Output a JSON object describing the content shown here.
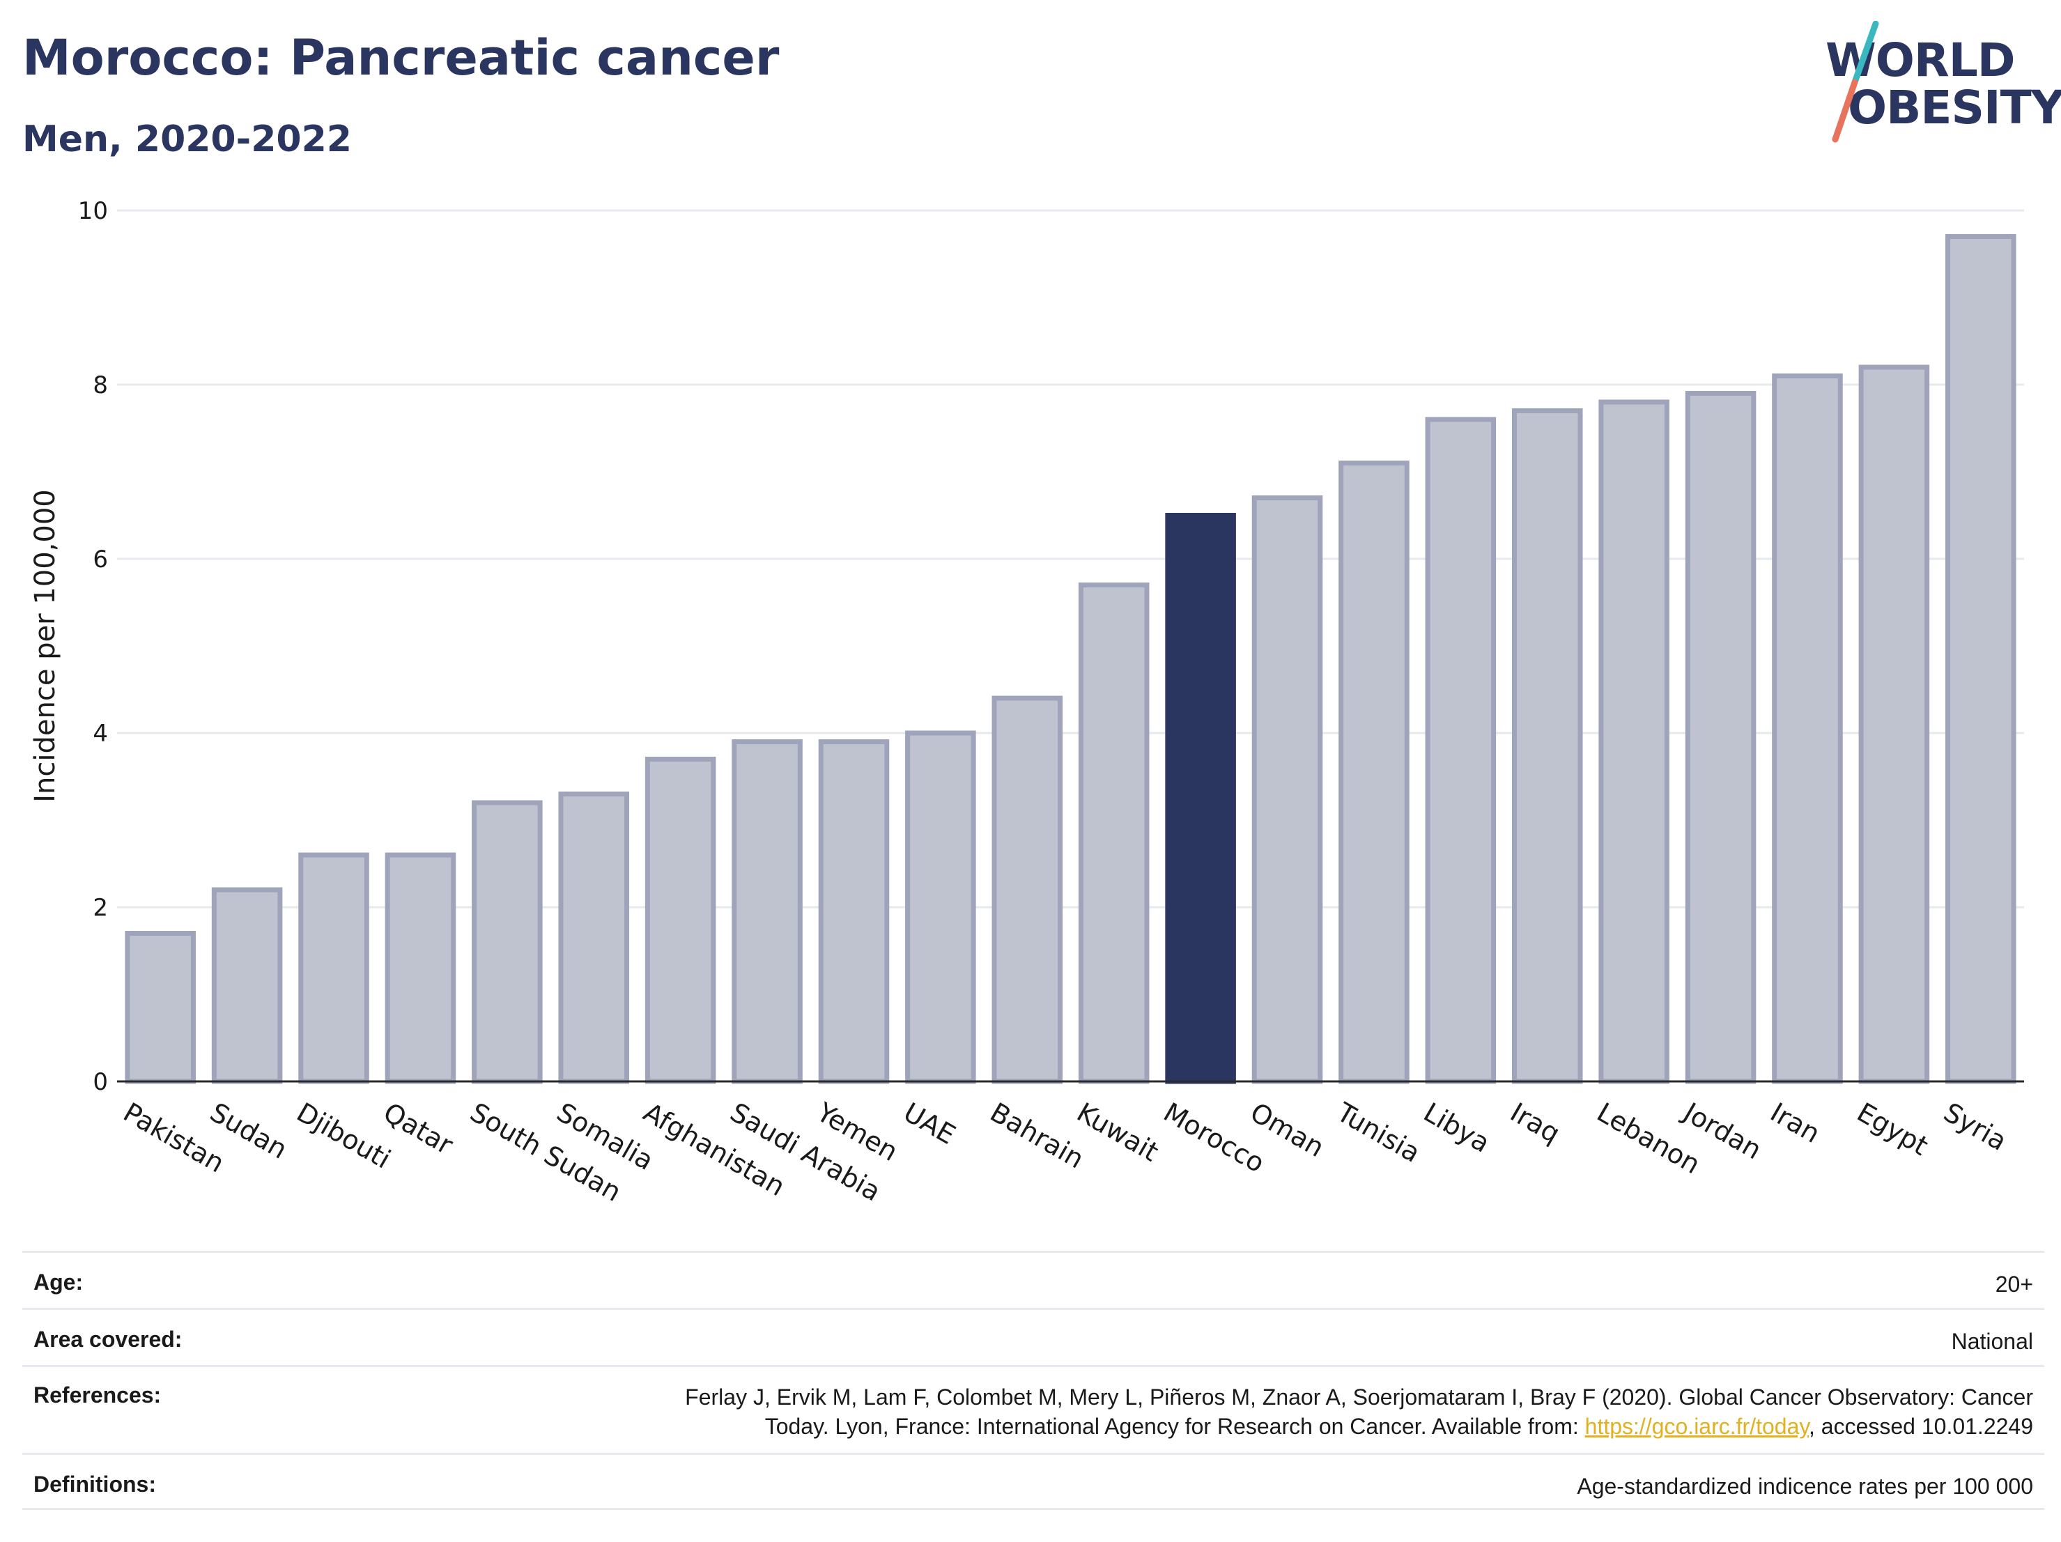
{
  "header": {
    "title": "Morocco: Pancreatic cancer",
    "subtitle": "Men, 2020-2022"
  },
  "logo": {
    "line1": "WORLD",
    "line2": "OBESITY",
    "icon": "slash-logo-mark"
  },
  "colors": {
    "highlight": "#2a3560",
    "bar_fill": "#bfc2cf",
    "bar_stroke": "#9fa4bb",
    "gridline": "#e6e9ee",
    "link": "#e0b220"
  },
  "chart_data": {
    "type": "bar",
    "title": "Morocco: Pancreatic cancer",
    "subtitle": "Men, 2020-2022",
    "xlabel": "",
    "ylabel": "Incidence per 100,000",
    "ylim": [
      0,
      10
    ],
    "yticks": [
      0,
      2,
      4,
      6,
      8,
      10
    ],
    "grid": true,
    "highlight_category": "Morocco",
    "categories": [
      "Pakistan",
      "Sudan",
      "Djibouti",
      "Qatar",
      "South Sudan",
      "Somalia",
      "Afghanistan",
      "Saudi Arabia",
      "Yemen",
      "UAE",
      "Bahrain",
      "Kuwait",
      "Morocco",
      "Oman",
      "Tunisia",
      "Libya",
      "Iraq",
      "Lebanon",
      "Jordan",
      "Iran",
      "Egypt",
      "Syria"
    ],
    "values": [
      1.7,
      2.2,
      2.6,
      2.6,
      3.2,
      3.3,
      3.7,
      3.9,
      3.9,
      4.0,
      4.4,
      5.7,
      6.5,
      6.7,
      7.1,
      7.6,
      7.7,
      7.8,
      7.9,
      8.1,
      8.2,
      9.7
    ]
  },
  "info": {
    "age_label": "Age:",
    "age_value": "20+",
    "area_label": "Area covered:",
    "area_value": "National",
    "references_label": "References:",
    "references_line1": "Ferlay J, Ervik M, Lam F, Colombet M, Mery L, Piñeros M, Znaor A, Soerjomataram I, Bray F (2020). Global Cancer Observatory: Cancer",
    "references_line2_pre": "Today. Lyon, France: International Agency for Research on Cancer. Available from: ",
    "references_link": "https://gco.iarc.fr/today",
    "references_line2_post": ", accessed 10.01.2249",
    "definitions_label": "Definitions:",
    "definitions_value": "Age-standardized indicence rates per 100 000"
  }
}
